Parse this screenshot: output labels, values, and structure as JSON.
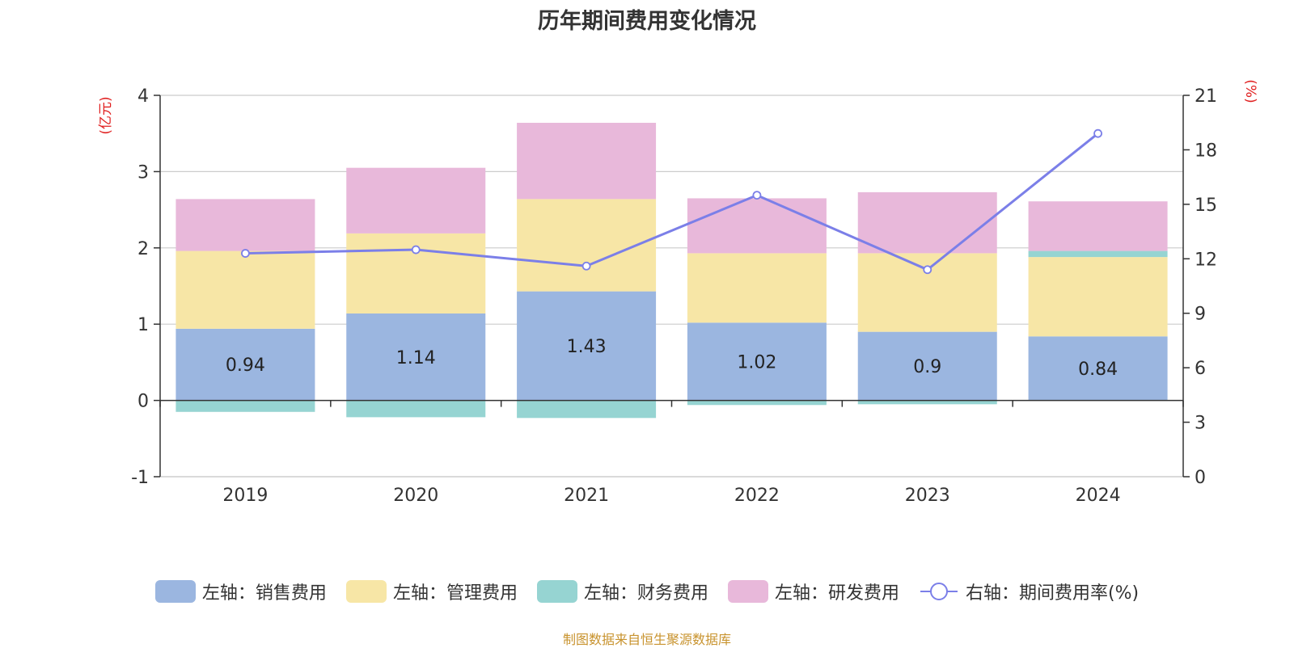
{
  "chart_data": {
    "type": "bar",
    "title": "历年期间费用变化情况",
    "categories": [
      "2019",
      "2020",
      "2021",
      "2022",
      "2023",
      "2024"
    ],
    "left_axis": {
      "label": "(亿元)",
      "ylim": [
        -1,
        4
      ],
      "ticks": [
        "-1",
        "0",
        "1",
        "2",
        "3",
        "4"
      ]
    },
    "right_axis": {
      "label": "(%)",
      "ylim": [
        0,
        21
      ],
      "ticks": [
        "0",
        "3",
        "6",
        "9",
        "12",
        "15",
        "18",
        "21"
      ]
    },
    "series": [
      {
        "name": "左轴：销售费用",
        "color": "#9bb6e0",
        "values": [
          0.94,
          1.14,
          1.43,
          1.02,
          0.9,
          0.84
        ],
        "labels": [
          "0.94",
          "1.14",
          "1.43",
          "1.02",
          "0.9",
          "0.84"
        ]
      },
      {
        "name": "左轴：管理费用",
        "color": "#f7e6a6",
        "values": [
          1.02,
          1.05,
          1.21,
          0.91,
          1.03,
          1.04
        ]
      },
      {
        "name": "左轴：财务费用",
        "color": "#96d4d2",
        "values": [
          -0.15,
          -0.22,
          -0.23,
          -0.06,
          -0.05,
          0.08
        ]
      },
      {
        "name": "左轴：研发费用",
        "color": "#e8b8da",
        "values": [
          0.68,
          0.86,
          1.0,
          0.72,
          0.8,
          0.65
        ]
      }
    ],
    "line_series": {
      "name": "右轴：期间费用率(%)",
      "color": "#7b7fe8",
      "values": [
        12.3,
        12.5,
        11.6,
        15.5,
        11.4,
        18.9
      ]
    }
  },
  "legend": {
    "sales": "左轴：销售费用",
    "admin": "左轴：管理费用",
    "finance": "左轴：财务费用",
    "rnd": "左轴：研发费用",
    "rate": "右轴：期间费用率(%)"
  },
  "source": "制图数据来自恒生聚源数据库"
}
